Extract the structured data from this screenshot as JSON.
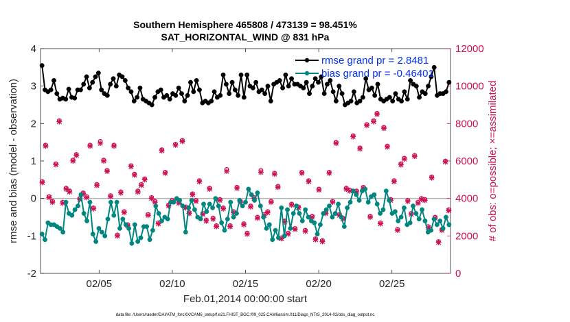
{
  "chart_data": {
    "type": "line",
    "title": "Southern Hemisphere 465808 / 473139 = 98.451%",
    "subtitle": "SAT_HORIZONTAL_WIND @ 831 hPa",
    "xlabel": "Feb.01,2014 00:00:00 start",
    "ylabel": "rmse and bias (model - observation)",
    "y2label": "# of obs: o=possible; ×=assimilated",
    "footnote": "data file: /Users/raeder/DAI/ATM_forcXX/CAM6_setup/f.e21.FHIST_BGC.f09_025.CAM6assim.011/Diags_NTrS_2014-02/obs_diag_output.nc",
    "xlim": [
      1,
      29
    ],
    "ylim": [
      -2,
      4
    ],
    "y2lim": [
      0,
      12000
    ],
    "xticks": [
      5,
      10,
      15,
      20,
      25
    ],
    "xtick_labels": [
      "02/05",
      "02/10",
      "02/15",
      "02/20",
      "02/25"
    ],
    "yticks": [
      -2,
      -1,
      0,
      1,
      2,
      3,
      4
    ],
    "ytick_labels": [
      "-2",
      "-1",
      "0",
      "1",
      "2",
      "3",
      "4"
    ],
    "y2ticks": [
      0,
      2000,
      4000,
      6000,
      8000,
      10000,
      12000
    ],
    "y2tick_labels": [
      "0",
      "2000",
      "4000",
      "6000",
      "8000",
      "10000",
      "12000"
    ],
    "legend_position": "top-right",
    "colors": {
      "rmse": "#000000",
      "bias": "#00857f",
      "obs": "#cc1155",
      "zero_line": "#b3b3b3"
    },
    "series": [
      {
        "name": "rmse grand pr = 2.8481",
        "axis": "left",
        "values": [
          3.55,
          2.9,
          2.85,
          2.9,
          3.15,
          2.8,
          2.65,
          2.68,
          2.65,
          2.92,
          2.7,
          2.68,
          2.9,
          2.9,
          3.05,
          3.25,
          2.95,
          3.1,
          3.25,
          3.35,
          2.9,
          2.8,
          2.75,
          3.05,
          3.2,
          3.0,
          3.3,
          3.25,
          3.15,
          2.95,
          2.85,
          2.6,
          2.7,
          2.95,
          2.65,
          2.6,
          2.55,
          2.5,
          2.7,
          2.85,
          2.9,
          2.7,
          2.75,
          2.65,
          2.8,
          2.75,
          2.95,
          2.8,
          2.6,
          2.75,
          3.1,
          2.85,
          3.15,
          2.9,
          2.55,
          2.6,
          2.55,
          2.6,
          2.85,
          2.7,
          2.75,
          3.3,
          3.05,
          2.8,
          3.1,
          2.9,
          2.75,
          3.3,
          2.7,
          3.3,
          3.0,
          2.95,
          3.1,
          2.85,
          2.9,
          2.8,
          3.0,
          2.6,
          3.05,
          3.1,
          3.15,
          2.95,
          3.3,
          3.0,
          3.2,
          3.05,
          3.05,
          3.0,
          2.95,
          3.1,
          2.8,
          3.0,
          3.2,
          3.1,
          3.25,
          2.8,
          3.05,
          3.15,
          2.85,
          2.6,
          3.0,
          2.8,
          2.5,
          2.55,
          2.6,
          2.85,
          2.55,
          2.6,
          2.7,
          3.2,
          2.9,
          2.95,
          2.75,
          3.05,
          2.65,
          2.6,
          2.65,
          2.7,
          2.6,
          2.8,
          2.65,
          2.6,
          2.85,
          2.65,
          3.15,
          3.05,
          3.0,
          2.7,
          2.85,
          2.8,
          3.0,
          3.25,
          3.5,
          2.75,
          2.8,
          2.8,
          2.85,
          3.1
        ]
      },
      {
        "name": "bias grand pr = -0.46401",
        "axis": "left",
        "values": [
          -0.95,
          -1.1,
          -0.65,
          -0.7,
          -0.7,
          -0.75,
          -0.8,
          -0.9,
          -0.1,
          -0.4,
          -0.45,
          -0.3,
          -0.2,
          0.1,
          -0.4,
          -0.6,
          -0.1,
          -0.95,
          -1.15,
          -0.8,
          -0.9,
          -1.0,
          -0.55,
          -0.1,
          -0.45,
          -0.1,
          -0.8,
          -0.55,
          -0.7,
          -0.8,
          -1.2,
          -0.7,
          -1.15,
          -1.05,
          -0.75,
          -0.75,
          -1.1,
          -0.85,
          -0.2,
          -0.4,
          -0.6,
          -0.5,
          -0.55,
          -0.1,
          -0.1,
          0.0,
          -0.05,
          -0.2,
          -0.9,
          -0.25,
          -0.05,
          -0.3,
          -0.5,
          -0.55,
          -0.15,
          -0.35,
          -0.15,
          -0.25,
          0.0,
          -0.2,
          -0.65,
          -0.85,
          -0.55,
          -0.1,
          -0.5,
          -0.4,
          -0.05,
          -0.2,
          -0.1,
          0.25,
          0.1,
          -0.05,
          0.15,
          -0.2,
          -0.5,
          -0.8,
          -0.7,
          -1.1,
          -0.85,
          -1.05,
          -0.25,
          -1.0,
          -0.3,
          -0.8,
          -0.4,
          -0.2,
          -0.4,
          -0.6,
          -0.3,
          -0.5,
          -0.6,
          -0.65,
          -0.95,
          -0.7,
          -0.4,
          -0.3,
          -0.2,
          -0.5,
          -0.4,
          -0.15,
          -0.5,
          -0.75,
          -0.25,
          -0.1,
          0.2,
          0.1,
          -0.05,
          0.2,
          0.25,
          -0.1,
          0.05,
          0.1,
          -0.15,
          -0.4,
          -0.3,
          0.2,
          -0.05,
          -0.4,
          -0.35,
          -0.6,
          -0.5,
          -0.25,
          -0.7,
          -0.65,
          -0.2,
          -0.4,
          -0.55,
          -0.3,
          -0.6,
          -0.9,
          -0.85,
          -0.55,
          -0.7,
          -0.6,
          -0.8,
          -0.5,
          -0.7
        ]
      },
      {
        "name": "possible",
        "axis": "right",
        "marker": "o",
        "values": [
          4900,
          6850,
          4100,
          3850,
          5850,
          8150,
          3800,
          4550,
          4400,
          6050,
          6350,
          4000,
          4300,
          4100,
          6850,
          3500,
          4750,
          7050,
          6050,
          5500,
          4150,
          6850,
          2050,
          4350,
          3300,
          2600,
          5750,
          5300,
          4400,
          4750,
          5050,
          3150,
          4050,
          3850,
          2700,
          6600,
          5400,
          3650,
          3900,
          6900,
          3800,
          7100,
          3550,
          3250,
          4250,
          3900,
          4950,
          3200,
          2850,
          4550,
          2950,
          2550,
          3950,
          3500,
          5550,
          2550,
          3300,
          4600,
          3850,
          2650,
          2150,
          3600,
          4050,
          3000,
          5500,
          3150,
          3300,
          3850,
          5350,
          4650,
          1900,
          2800,
          2150,
          3700,
          2400,
          3550,
          5400,
          2300,
          4950,
          3050,
          1850,
          4500,
          1750,
          3250,
          5400,
          3850,
          7000,
          3150,
          2950,
          4550,
          4450,
          7350,
          4400,
          6700,
          4600,
          7950,
          3050,
          8150,
          8550,
          2700,
          7800,
          6800,
          3950,
          4950,
          2350,
          5850,
          6150,
          3900,
          3200,
          6300,
          3800,
          4000,
          3950,
          2500,
          5150,
          3000,
          1700,
          2350,
          6000,
          3400
        ]
      },
      {
        "name": "assimilated",
        "axis": "right",
        "marker": "x",
        "values": [
          4850,
          6800,
          4050,
          3800,
          5800,
          8100,
          3750,
          4500,
          4350,
          6000,
          6300,
          3950,
          4250,
          4050,
          6800,
          3450,
          4700,
          6950,
          6000,
          5450,
          4100,
          6800,
          2000,
          4300,
          3250,
          2550,
          5700,
          5250,
          4350,
          4700,
          5000,
          3100,
          4000,
          3800,
          2650,
          6550,
          5350,
          3600,
          3850,
          6850,
          3750,
          7050,
          3500,
          3200,
          4200,
          3850,
          4900,
          3150,
          2800,
          4500,
          2900,
          2500,
          3900,
          3450,
          5450,
          2500,
          3250,
          4550,
          3800,
          2600,
          2100,
          3550,
          4000,
          2950,
          5400,
          3100,
          3250,
          3800,
          5300,
          4600,
          1850,
          2750,
          2100,
          3650,
          2350,
          3500,
          5350,
          2250,
          4900,
          3000,
          1800,
          4450,
          1700,
          3200,
          5350,
          3800,
          6950,
          3100,
          2900,
          4500,
          4400,
          7300,
          4350,
          6650,
          4550,
          7900,
          3000,
          8100,
          8500,
          2650,
          7750,
          6750,
          3900,
          4900,
          2300,
          5800,
          6100,
          3850,
          3150,
          6250,
          3750,
          3950,
          3900,
          2450,
          5100,
          2950,
          1650,
          2300,
          5950,
          3350
        ]
      }
    ]
  }
}
